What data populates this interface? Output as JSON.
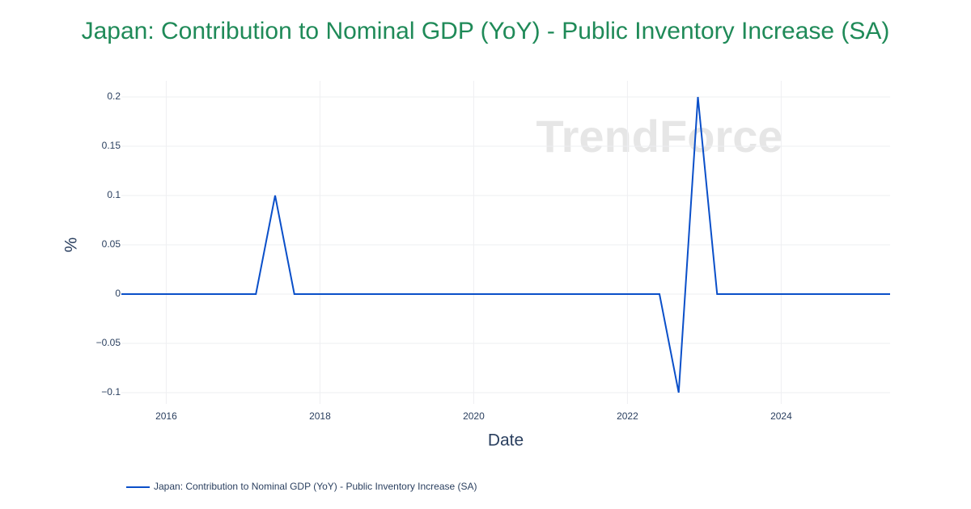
{
  "chart_data": {
    "type": "line",
    "title": "Japan: Contribution to Nominal GDP (YoY) - Public Inventory Increase (SA)",
    "x_label": "Date",
    "y_label": "%",
    "watermark": "TrendForce",
    "x": [
      "2015-06",
      "2015-09",
      "2015-12",
      "2016-03",
      "2016-06",
      "2016-09",
      "2016-12",
      "2017-03",
      "2017-06",
      "2017-09",
      "2017-12",
      "2018-03",
      "2018-06",
      "2018-09",
      "2018-12",
      "2019-03",
      "2019-06",
      "2019-09",
      "2019-12",
      "2020-03",
      "2020-06",
      "2020-09",
      "2020-12",
      "2021-03",
      "2021-06",
      "2021-09",
      "2021-12",
      "2022-03",
      "2022-06",
      "2022-09",
      "2022-12",
      "2023-03",
      "2023-06",
      "2023-09",
      "2023-12",
      "2024-03",
      "2024-06",
      "2024-09",
      "2024-12",
      "2025-03",
      "2025-06"
    ],
    "series": [
      {
        "name": "Japan: Contribution to Nominal GDP (YoY) - Public Inventory Increase (SA)",
        "color": "#0a4fc9",
        "values": [
          0,
          0,
          0,
          0,
          0,
          0,
          0,
          0,
          0.1,
          0,
          0,
          0,
          0,
          0,
          0,
          0,
          0,
          0,
          0,
          0,
          0,
          0,
          0,
          0,
          0,
          0,
          0,
          0,
          0,
          -0.1,
          0.2,
          0,
          0,
          0,
          0,
          0,
          0,
          0,
          0,
          0,
          0
        ]
      }
    ],
    "xlim": [
      "2015-06",
      "2025-06"
    ],
    "xticks": [
      "2016",
      "2018",
      "2020",
      "2022",
      "2024"
    ],
    "ylim": [
      -0.1115,
      0.2164
    ],
    "yticks": [
      {
        "value": -0.1,
        "label": "−0.1"
      },
      {
        "value": -0.05,
        "label": "−0.05"
      },
      0,
      0.05,
      0.1,
      0.15,
      0.2
    ],
    "grid": true,
    "legend": "bottom-left"
  }
}
